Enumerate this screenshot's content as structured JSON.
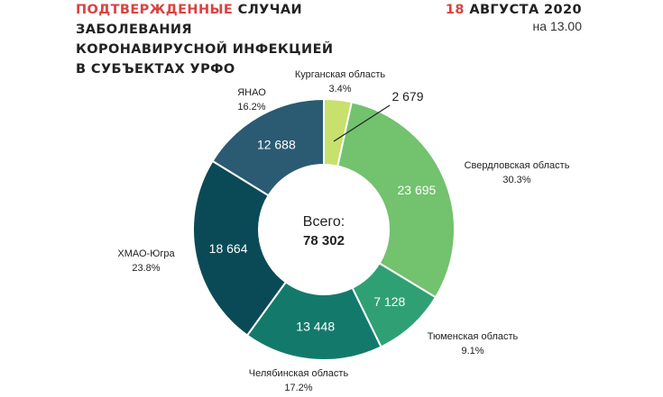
{
  "header": {
    "title_part1": "ПОДТВЕРЖДЕННЫЕ",
    "title_part2": " СЛУЧАИ",
    "title_line2": "ЗАБОЛЕВАНИЯ",
    "title_line3": "КОРОНАВИРУСНОЙ ИНФЕКЦИЕЙ",
    "title_line4": "В СУБЪЕКТАХ УРФО",
    "date_day": "18",
    "date_rest": " АВГУСТА 2020",
    "time": "на 13.00"
  },
  "center": {
    "label": "Всего:",
    "total": "78 302"
  },
  "chart_data": {
    "type": "pie",
    "donut": true,
    "total": 78302,
    "slices": [
      {
        "name": "Курганская область",
        "value": 2679,
        "value_label": "2 679",
        "percent_label": "3.4%",
        "color": "#c8e06c"
      },
      {
        "name": "Свердловская область",
        "value": 23695,
        "value_label": "23 695",
        "percent_label": "30.3%",
        "color": "#72c26e"
      },
      {
        "name": "Тюменская область",
        "value": 7128,
        "value_label": "7 128",
        "percent_label": "9.1%",
        "color": "#2fa074"
      },
      {
        "name": "Челябинская область",
        "value": 13448,
        "value_label": "13 448",
        "percent_label": "17.2%",
        "color": "#137a6b"
      },
      {
        "name": "ХМАО-Югра",
        "value": 18664,
        "value_label": "18 664",
        "percent_label": "23.8%",
        "color": "#0a4a57"
      },
      {
        "name": "ЯНАО",
        "value": 12688,
        "value_label": "12 688",
        "percent_label": "16.2%",
        "color": "#2a5b73"
      }
    ]
  }
}
